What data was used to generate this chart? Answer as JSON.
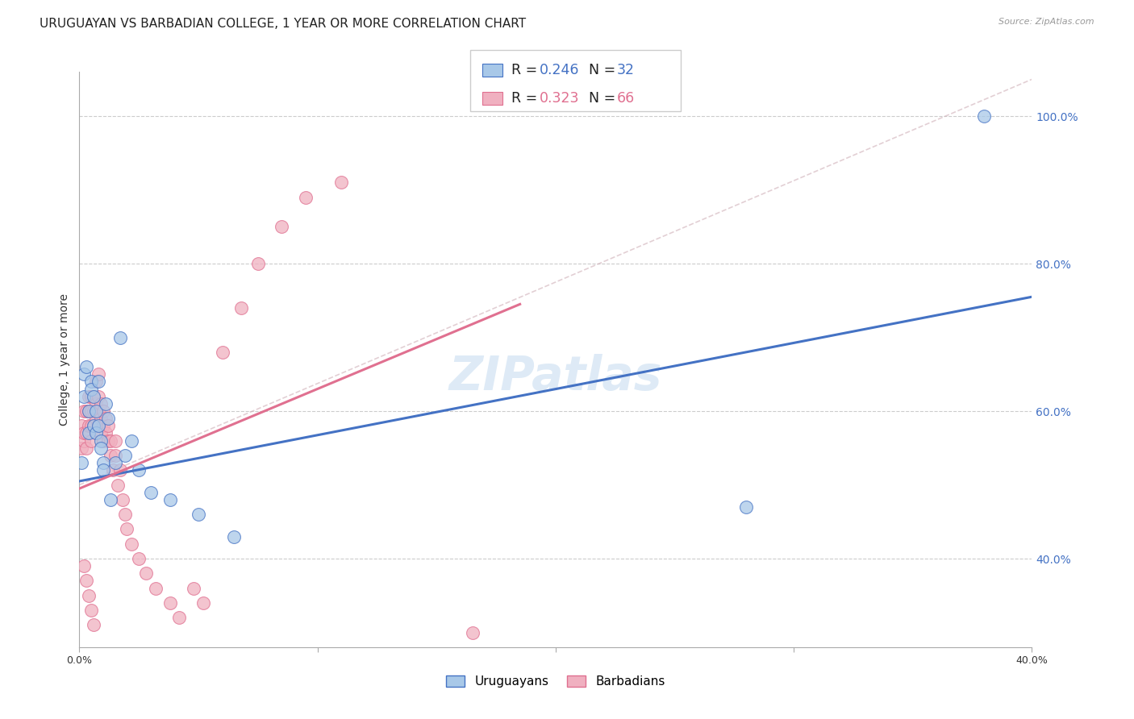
{
  "title": "URUGUAYAN VS BARBADIAN COLLEGE, 1 YEAR OR MORE CORRELATION CHART",
  "source": "Source: ZipAtlas.com",
  "ylabel": "College, 1 year or more",
  "xlim": [
    0.0,
    0.4
  ],
  "ylim": [
    0.28,
    1.06
  ],
  "xticks": [
    0.0,
    0.1,
    0.2,
    0.3,
    0.4
  ],
  "xtick_labels": [
    "0.0%",
    "",
    "",
    "",
    "40.0%"
  ],
  "yticks_right": [
    0.4,
    0.6,
    0.8,
    1.0
  ],
  "ytick_labels_right": [
    "40.0%",
    "60.0%",
    "80.0%",
    "100.0%"
  ],
  "blue_color": "#a8c8e8",
  "pink_color": "#f0b0c0",
  "blue_line_color": "#4472c4",
  "pink_line_color": "#e07090",
  "diag_color": "#d0b0b8",
  "legend_R_blue": "0.246",
  "legend_N_blue": "32",
  "legend_R_pink": "0.323",
  "legend_N_pink": "66",
  "blue_line_x": [
    0.0,
    0.4
  ],
  "blue_line_y": [
    0.505,
    0.755
  ],
  "pink_line_x": [
    0.0,
    0.185
  ],
  "pink_line_y": [
    0.495,
    0.745
  ],
  "diag_line_x": [
    0.0,
    0.4
  ],
  "diag_line_y": [
    0.5,
    1.05
  ],
  "background_color": "#ffffff",
  "grid_color": "#cccccc",
  "title_fontsize": 11,
  "axis_fontsize": 9,
  "tick_fontsize": 9,
  "watermark": "ZIPatlas",
  "watermark_color": "#c8ddf0",
  "blue_x": [
    0.001,
    0.002,
    0.002,
    0.003,
    0.004,
    0.004,
    0.005,
    0.005,
    0.006,
    0.006,
    0.007,
    0.007,
    0.008,
    0.008,
    0.009,
    0.009,
    0.01,
    0.01,
    0.011,
    0.012,
    0.013,
    0.015,
    0.017,
    0.019,
    0.022,
    0.025,
    0.03,
    0.038,
    0.05,
    0.065,
    0.28,
    0.38
  ],
  "blue_y": [
    0.53,
    0.62,
    0.65,
    0.66,
    0.6,
    0.57,
    0.64,
    0.63,
    0.62,
    0.58,
    0.6,
    0.57,
    0.64,
    0.58,
    0.56,
    0.55,
    0.53,
    0.52,
    0.61,
    0.59,
    0.48,
    0.53,
    0.7,
    0.54,
    0.56,
    0.52,
    0.49,
    0.48,
    0.46,
    0.43,
    0.47,
    1.0
  ],
  "pink_x": [
    0.001,
    0.001,
    0.002,
    0.002,
    0.002,
    0.003,
    0.003,
    0.003,
    0.004,
    0.004,
    0.004,
    0.005,
    0.005,
    0.005,
    0.005,
    0.006,
    0.006,
    0.006,
    0.007,
    0.007,
    0.007,
    0.007,
    0.008,
    0.008,
    0.008,
    0.008,
    0.009,
    0.009,
    0.009,
    0.01,
    0.01,
    0.01,
    0.011,
    0.011,
    0.012,
    0.012,
    0.013,
    0.013,
    0.014,
    0.015,
    0.015,
    0.016,
    0.017,
    0.018,
    0.019,
    0.02,
    0.022,
    0.025,
    0.028,
    0.032,
    0.038,
    0.042,
    0.048,
    0.052,
    0.06,
    0.068,
    0.075,
    0.085,
    0.095,
    0.11,
    0.002,
    0.003,
    0.004,
    0.005,
    0.006,
    0.165
  ],
  "pink_y": [
    0.55,
    0.58,
    0.56,
    0.57,
    0.6,
    0.55,
    0.57,
    0.6,
    0.58,
    0.6,
    0.62,
    0.56,
    0.58,
    0.6,
    0.62,
    0.58,
    0.6,
    0.62,
    0.57,
    0.59,
    0.61,
    0.64,
    0.58,
    0.6,
    0.62,
    0.65,
    0.57,
    0.59,
    0.61,
    0.56,
    0.58,
    0.6,
    0.57,
    0.59,
    0.56,
    0.58,
    0.54,
    0.56,
    0.52,
    0.54,
    0.56,
    0.5,
    0.52,
    0.48,
    0.46,
    0.44,
    0.42,
    0.4,
    0.38,
    0.36,
    0.34,
    0.32,
    0.36,
    0.34,
    0.68,
    0.74,
    0.8,
    0.85,
    0.89,
    0.91,
    0.39,
    0.37,
    0.35,
    0.33,
    0.31,
    0.3
  ]
}
